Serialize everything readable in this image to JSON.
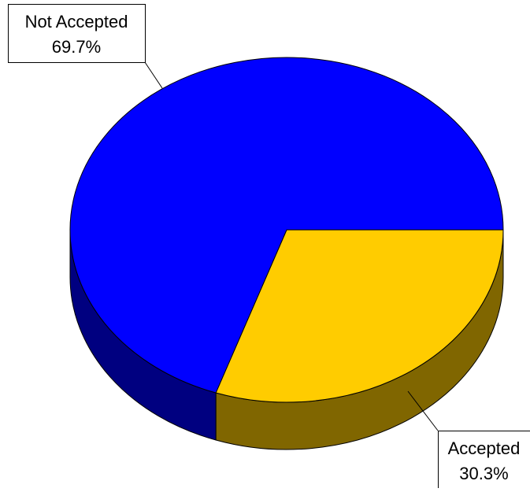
{
  "chart_data": {
    "type": "pie",
    "style": "3d",
    "slices": [
      {
        "label": "Accepted",
        "value": 30.3,
        "value_text": "30.3%",
        "color": "#FFCC00",
        "side_color": "#806600"
      },
      {
        "label": "Not Accepted",
        "value": 69.7,
        "value_text": "69.7%",
        "color": "#0000FF",
        "side_color": "#000080"
      }
    ],
    "outline_color": "#000000",
    "background": "#FFFFFF"
  }
}
